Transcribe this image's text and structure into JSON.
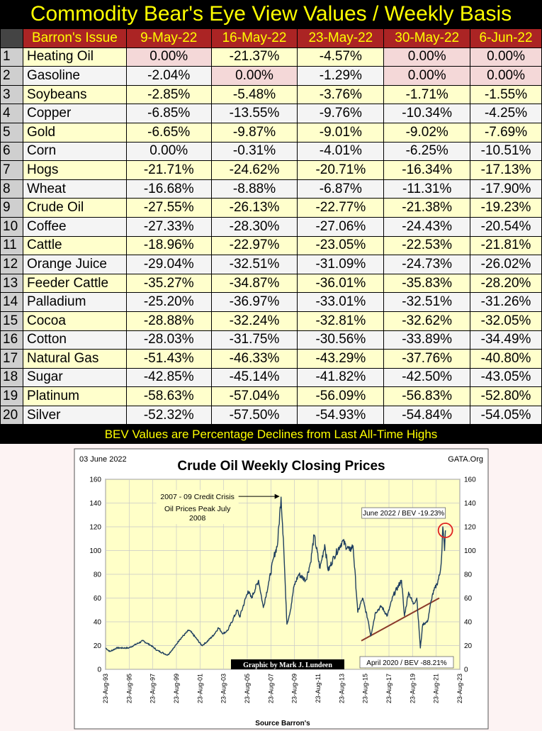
{
  "title": "Commodity Bear's Eye View Values / Weekly Basis",
  "table": {
    "header_issue": "Barron's Issue",
    "columns": [
      "9-May-22",
      "16-May-22",
      "23-May-22",
      "30-May-22",
      "6-Jun-22"
    ],
    "rows": [
      {
        "n": "1",
        "name": "Heating Oil",
        "values": [
          "0.00%",
          "-21.37%",
          "-4.57%",
          "0.00%",
          "0.00%"
        ]
      },
      {
        "n": "2",
        "name": "Gasoline",
        "values": [
          "-2.04%",
          "0.00%",
          "-1.29%",
          "0.00%",
          "0.00%"
        ]
      },
      {
        "n": "3",
        "name": "Soybeans",
        "values": [
          "-2.85%",
          "-5.48%",
          "-3.76%",
          "-1.71%",
          "-1.55%"
        ]
      },
      {
        "n": "4",
        "name": "Copper",
        "values": [
          "-6.85%",
          "-13.55%",
          "-9.76%",
          "-10.34%",
          "-4.25%"
        ]
      },
      {
        "n": "5",
        "name": "Gold",
        "values": [
          "-6.65%",
          "-9.87%",
          "-9.01%",
          "-9.02%",
          "-7.69%"
        ]
      },
      {
        "n": "6",
        "name": "Corn",
        "values": [
          "0.00%",
          "-0.31%",
          "-4.01%",
          "-6.25%",
          "-10.51%"
        ]
      },
      {
        "n": "7",
        "name": "Hogs",
        "values": [
          "-21.71%",
          "-24.62%",
          "-20.71%",
          "-16.34%",
          "-17.13%"
        ]
      },
      {
        "n": "8",
        "name": "Wheat",
        "values": [
          "-16.68%",
          "-8.88%",
          "-6.87%",
          "-11.31%",
          "-17.90%"
        ]
      },
      {
        "n": "9",
        "name": "Crude Oil",
        "values": [
          "-27.55%",
          "-26.13%",
          "-22.77%",
          "-21.38%",
          "-19.23%"
        ]
      },
      {
        "n": "10",
        "name": "Coffee",
        "values": [
          "-27.33%",
          "-28.30%",
          "-27.06%",
          "-24.43%",
          "-20.54%"
        ]
      },
      {
        "n": "11",
        "name": "Cattle",
        "values": [
          "-18.96%",
          "-22.97%",
          "-23.05%",
          "-22.53%",
          "-21.81%"
        ]
      },
      {
        "n": "12",
        "name": "Orange Juice",
        "values": [
          "-29.04%",
          "-32.51%",
          "-31.09%",
          "-24.73%",
          "-26.02%"
        ]
      },
      {
        "n": "13",
        "name": "Feeder Cattle",
        "values": [
          "-35.27%",
          "-34.87%",
          "-36.01%",
          "-35.83%",
          "-28.20%"
        ]
      },
      {
        "n": "14",
        "name": "Palladium",
        "values": [
          "-25.20%",
          "-36.97%",
          "-33.01%",
          "-32.51%",
          "-31.26%"
        ]
      },
      {
        "n": "15",
        "name": "Cocoa",
        "values": [
          "-28.88%",
          "-32.24%",
          "-32.81%",
          "-32.62%",
          "-32.05%"
        ]
      },
      {
        "n": "16",
        "name": "Cotton",
        "values": [
          "-28.03%",
          "-31.75%",
          "-30.56%",
          "-33.89%",
          "-34.49%"
        ]
      },
      {
        "n": "17",
        "name": "Natural Gas",
        "values": [
          "-51.43%",
          "-46.33%",
          "-43.29%",
          "-37.76%",
          "-40.80%"
        ]
      },
      {
        "n": "18",
        "name": "Sugar",
        "values": [
          "-42.85%",
          "-45.14%",
          "-41.82%",
          "-42.50%",
          "-43.05%"
        ]
      },
      {
        "n": "19",
        "name": "Platinum",
        "values": [
          "-58.63%",
          "-57.04%",
          "-56.09%",
          "-56.83%",
          "-52.80%"
        ]
      },
      {
        "n": "20",
        "name": "Silver",
        "values": [
          "-52.32%",
          "-57.50%",
          "-54.93%",
          "-54.84%",
          "-54.05%"
        ]
      }
    ]
  },
  "footnote": "BEV Values are Percentage Declines from Last All-Time Highs",
  "colors": {
    "title": "#ffff00",
    "header_bg": "#ab2424",
    "row_odd": "#ffffcc",
    "row_even": "#f4f4f4",
    "zero_highlight": "#f4d8d8",
    "plot_bg": "#ffffc8",
    "price_line": "#1f3f5f",
    "trend_line": "#8b3a2a",
    "circle": "#e02020"
  },
  "chart_data": {
    "type": "line",
    "title": "Crude Oil Weekly Closing Prices",
    "date_label": "03 June 2022",
    "source_label": "GATA.Org",
    "credit": "Graphic by Mark J. Lundeen",
    "xlabel": "Source Barron's",
    "ylabel": "",
    "ylim": [
      0,
      160
    ],
    "yticks": [
      0,
      20,
      40,
      60,
      80,
      100,
      120,
      140,
      160
    ],
    "xlim": [
      1993.64,
      2023.64
    ],
    "xticks": [
      "23-Aug-93",
      "23-Aug-95",
      "23-Aug-97",
      "23-Aug-99",
      "23-Aug-01",
      "23-Aug-03",
      "23-Aug-05",
      "23-Aug-07",
      "23-Aug-09",
      "23-Aug-11",
      "23-Aug-13",
      "23-Aug-15",
      "23-Aug-17",
      "23-Aug-19",
      "23-Aug-21",
      "23-Aug-23"
    ],
    "grid": true,
    "series": [
      {
        "values": [
          [
            1993.64,
            18
          ],
          [
            1994.0,
            15
          ],
          [
            1994.6,
            18
          ],
          [
            1995.6,
            18
          ],
          [
            1996.0,
            20
          ],
          [
            1996.8,
            24
          ],
          [
            1997.5,
            20
          ],
          [
            1998.0,
            16
          ],
          [
            1998.9,
            12
          ],
          [
            1999.5,
            19
          ],
          [
            1999.9,
            25
          ],
          [
            2000.7,
            33
          ],
          [
            2001.0,
            30
          ],
          [
            2001.8,
            20
          ],
          [
            2002.2,
            23
          ],
          [
            2002.8,
            29
          ],
          [
            2003.2,
            35
          ],
          [
            2003.6,
            30
          ],
          [
            2004.0,
            33
          ],
          [
            2004.8,
            50
          ],
          [
            2005.0,
            44
          ],
          [
            2005.7,
            66
          ],
          [
            2006.0,
            60
          ],
          [
            2006.6,
            75
          ],
          [
            2007.0,
            52
          ],
          [
            2007.5,
            75
          ],
          [
            2007.9,
            95
          ],
          [
            2008.2,
            105
          ],
          [
            2008.5,
            145
          ],
          [
            2008.7,
            110
          ],
          [
            2008.9,
            60
          ],
          [
            2009.0,
            38
          ],
          [
            2009.3,
            50
          ],
          [
            2009.6,
            70
          ],
          [
            2010.0,
            80
          ],
          [
            2010.6,
            75
          ],
          [
            2011.0,
            90
          ],
          [
            2011.3,
            113
          ],
          [
            2011.8,
            85
          ],
          [
            2012.2,
            105
          ],
          [
            2012.5,
            83
          ],
          [
            2013.0,
            95
          ],
          [
            2013.7,
            108
          ],
          [
            2014.3,
            100
          ],
          [
            2014.6,
            104
          ],
          [
            2015.0,
            48
          ],
          [
            2015.4,
            60
          ],
          [
            2015.9,
            40
          ],
          [
            2016.1,
            28
          ],
          [
            2016.5,
            48
          ],
          [
            2017.0,
            53
          ],
          [
            2017.5,
            45
          ],
          [
            2018.0,
            62
          ],
          [
            2018.7,
            75
          ],
          [
            2018.95,
            45
          ],
          [
            2019.3,
            65
          ],
          [
            2019.7,
            55
          ],
          [
            2020.0,
            60
          ],
          [
            2020.3,
            18
          ],
          [
            2020.5,
            38
          ],
          [
            2020.9,
            40
          ],
          [
            2021.3,
            62
          ],
          [
            2021.7,
            72
          ],
          [
            2021.95,
            80
          ],
          [
            2022.1,
            95
          ],
          [
            2022.2,
            120
          ],
          [
            2022.35,
            100
          ],
          [
            2022.42,
            117
          ]
        ]
      },
      {
        "values": [
          [
            2015.3,
            24
          ],
          [
            2021.9,
            60
          ]
        ]
      }
    ],
    "annotations": [
      {
        "text": "2007 - 09 Credit Crisis",
        "x": 2008.5,
        "y": 145
      },
      {
        "text": "Oil Prices Peak July",
        "x": 2008.5,
        "y": 137
      },
      {
        "text": "2008",
        "x": 2008.5,
        "y": 130
      },
      {
        "text": "June 2022 / BEV -19.23%",
        "x": 2022.42,
        "y": 117
      },
      {
        "text": "April 2020 / BEV -88.21%",
        "x": 2020.3,
        "y": 18
      }
    ]
  }
}
